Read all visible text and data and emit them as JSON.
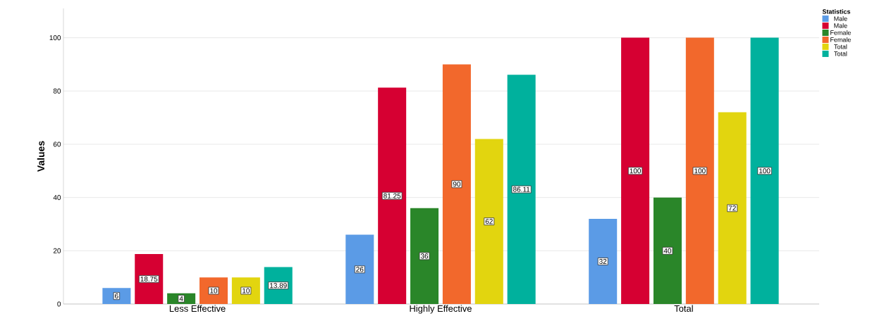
{
  "chart_data": {
    "type": "bar",
    "ylabel": "Values",
    "legend_title": "Statistics",
    "categories": [
      "Less Effective",
      "Highly Effective",
      "Total"
    ],
    "series": [
      {
        "name": "Male",
        "color": "#5b9be6",
        "values": [
          6,
          26,
          32
        ]
      },
      {
        "name": "Male",
        "color": "#d60032",
        "values": [
          18.75,
          81.25,
          100
        ]
      },
      {
        "name": "Female",
        "color": "#2a8629",
        "values": [
          4,
          36,
          40
        ]
      },
      {
        "name": "Female",
        "color": "#f2682c",
        "values": [
          10,
          90,
          100
        ]
      },
      {
        "name": "Total",
        "color": "#e2d50f",
        "values": [
          10,
          62,
          72
        ]
      },
      {
        "name": "Total",
        "color": "#00b19d",
        "values": [
          13.89,
          86.11,
          100
        ]
      }
    ],
    "ylim": [
      0,
      111
    ],
    "yticks": [
      0,
      20,
      40,
      60,
      80,
      100
    ],
    "grid": "y",
    "legend": "top right",
    "data_labels": true
  }
}
